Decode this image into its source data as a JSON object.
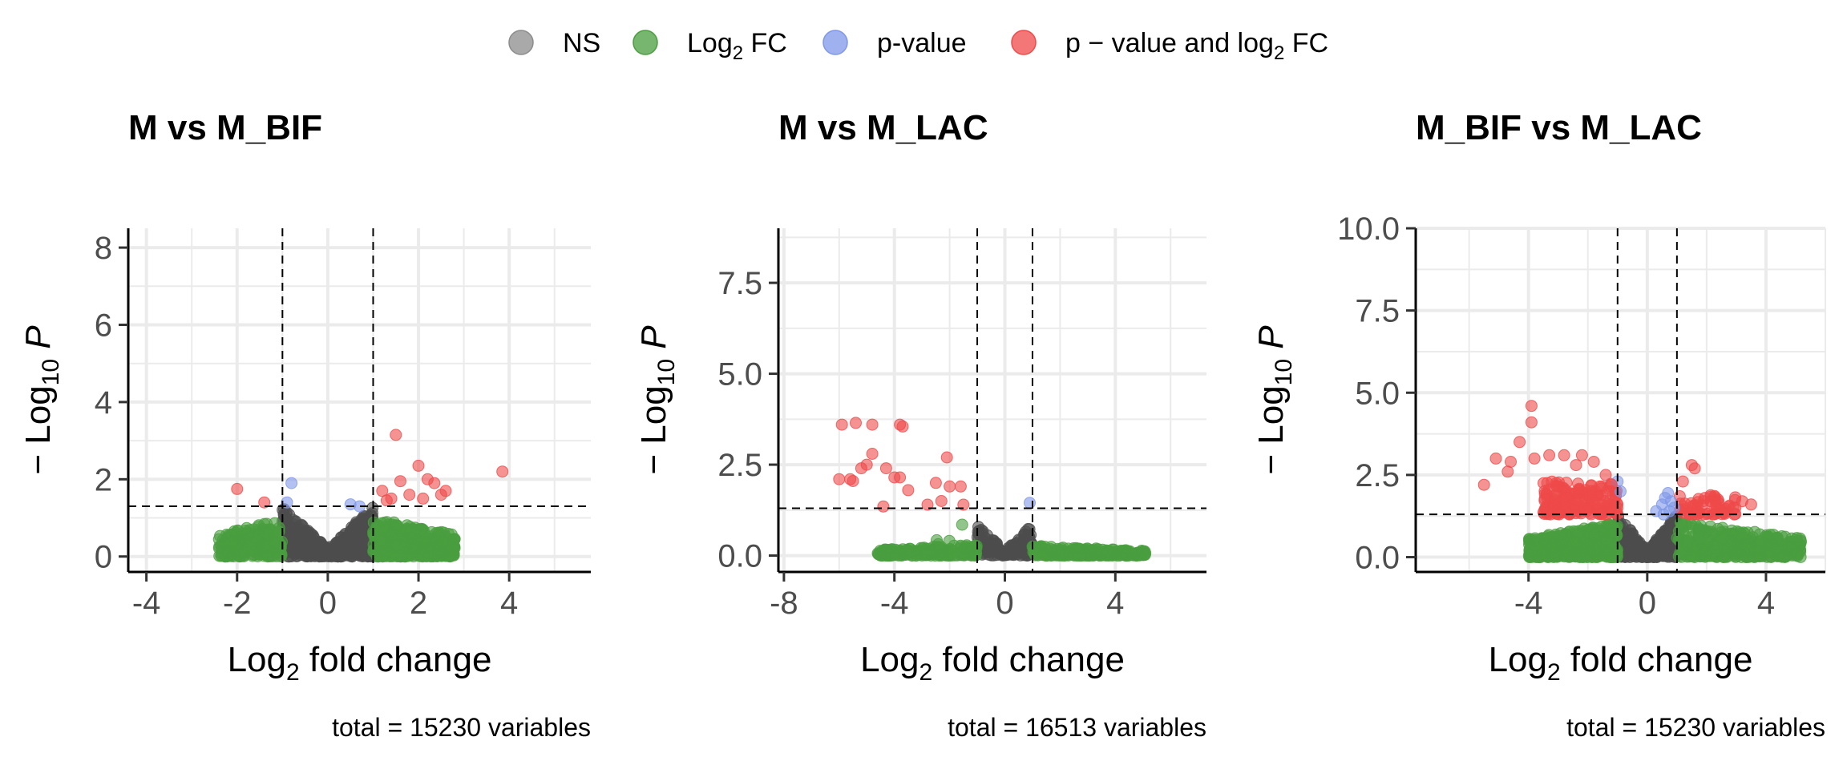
{
  "legend": {
    "items": [
      {
        "key": "ns",
        "label": "NS",
        "color": "#8c8c8c"
      },
      {
        "key": "fc",
        "label": "Log",
        "sub": "2",
        "after": " FC",
        "color": "#4a9e3f"
      },
      {
        "key": "p",
        "label": "p-value",
        "color": "#7f97e8"
      },
      {
        "key": "pfc",
        "label": "p − value and log",
        "sub": "2",
        "after": " FC",
        "color": "#ef4a4a"
      }
    ]
  },
  "axis_text": {
    "xlabel_pre": "Log",
    "xlabel_sub": "2",
    "xlabel_post": " fold change",
    "ylabel_pre": "− Log",
    "ylabel_sub": "10",
    "ylabel_post": "P"
  },
  "chart_data": [
    {
      "type": "scatter",
      "title": "M vs M_BIF",
      "caption": "total = 15230 variables",
      "xlim": [
        -4.4,
        5.8
      ],
      "ylim": [
        -0.4,
        8.5
      ],
      "xticks": [
        -4,
        -2,
        0,
        2,
        4
      ],
      "yticks": [
        0,
        2,
        4,
        6,
        8
      ],
      "ytick_labels": [
        "0",
        "2",
        "4",
        "6",
        "8"
      ],
      "fc_cutoff": [
        -1,
        1
      ],
      "p_cutoff": 1.3,
      "red": [
        [
          -2.0,
          1.75
        ],
        [
          -1.4,
          1.4
        ],
        [
          1.2,
          1.7
        ],
        [
          1.5,
          3.15
        ],
        [
          1.4,
          1.5
        ],
        [
          1.6,
          1.95
        ],
        [
          1.8,
          1.6
        ],
        [
          2.0,
          2.35
        ],
        [
          2.1,
          1.5
        ],
        [
          2.2,
          2.0
        ],
        [
          2.35,
          1.9
        ],
        [
          2.5,
          1.6
        ],
        [
          2.6,
          1.7
        ],
        [
          3.85,
          2.2
        ],
        [
          1.3,
          1.45
        ]
      ],
      "blue": [
        [
          -0.8,
          1.9
        ],
        [
          -0.9,
          1.4
        ],
        [
          0.5,
          1.35
        ],
        [
          0.7,
          1.3
        ]
      ],
      "green_groups": [
        {
          "x": [
            -2.4,
            -1.0
          ],
          "ymax": 1.25,
          "n": 240
        },
        {
          "x": [
            1.0,
            2.8
          ],
          "ymax": 1.25,
          "n": 420
        }
      ],
      "grey": {
        "xmax": 1.0,
        "ymax": 1.3,
        "n": 500
      }
    },
    {
      "type": "scatter",
      "title": "M vs M_LAC",
      "caption": "total = 16513 variables",
      "xlim": [
        -8.2,
        7.3
      ],
      "ylim": [
        -0.45,
        9.0
      ],
      "xticks": [
        -8,
        -4,
        0,
        4
      ],
      "yticks": [
        0,
        2.5,
        5,
        7.5
      ],
      "ytick_labels": [
        "0.0",
        "2.5",
        "5.0",
        "7.5"
      ],
      "fc_cutoff": [
        -1,
        1
      ],
      "p_cutoff": 1.3,
      "red": [
        [
          -5.9,
          3.6
        ],
        [
          -5.4,
          3.65
        ],
        [
          -4.8,
          3.6
        ],
        [
          -3.8,
          3.6
        ],
        [
          -3.7,
          3.55
        ],
        [
          -6.0,
          2.1
        ],
        [
          -5.6,
          2.1
        ],
        [
          -5.5,
          2.05
        ],
        [
          -5.2,
          2.4
        ],
        [
          -5.0,
          2.5
        ],
        [
          -4.8,
          2.8
        ],
        [
          -4.4,
          1.35
        ],
        [
          -4.3,
          2.4
        ],
        [
          -4.0,
          2.15
        ],
        [
          -3.8,
          2.15
        ],
        [
          -3.5,
          1.8
        ],
        [
          -2.8,
          1.4
        ],
        [
          -2.5,
          2.0
        ],
        [
          -2.1,
          2.7
        ],
        [
          -2.0,
          1.9
        ],
        [
          -1.6,
          1.9
        ],
        [
          -1.5,
          1.4
        ],
        [
          -2.3,
          1.5
        ]
      ],
      "blue": [
        [
          0.9,
          1.45
        ]
      ],
      "green_groups": [
        {
          "x": [
            -4.6,
            -1.0
          ],
          "ymax": 0.35,
          "n": 230
        },
        {
          "x": [
            1.0,
            5.1
          ],
          "ymax": 0.3,
          "n": 300
        },
        {
          "x": [
            -3.5,
            -1.5
          ],
          "ymax": 1.15,
          "n": 8
        }
      ],
      "grey": {
        "xmax": 1.0,
        "ymax": 0.85,
        "n": 150
      }
    },
    {
      "type": "scatter",
      "title": "M_BIF vs M_LAC",
      "caption": "total = 15230 variables",
      "xlim": [
        -7.8,
        6.0
      ],
      "ylim": [
        -0.45,
        10.0
      ],
      "xticks": [
        -4,
        0,
        4
      ],
      "yticks": [
        0,
        2.5,
        5,
        7.5,
        10
      ],
      "ytick_labels": [
        "0.0",
        "2.5",
        "5.0",
        "7.5",
        "10.0"
      ],
      "fc_cutoff": [
        -1,
        1
      ],
      "p_cutoff": 1.3,
      "red": [
        [
          -3.9,
          4.6
        ],
        [
          -3.9,
          4.1
        ],
        [
          -4.3,
          3.5
        ],
        [
          -4.6,
          2.9
        ],
        [
          -4.7,
          2.6
        ],
        [
          -5.1,
          3.0
        ],
        [
          -5.5,
          2.2
        ],
        [
          -3.8,
          3.0
        ],
        [
          -3.3,
          3.1
        ],
        [
          -2.8,
          3.1
        ],
        [
          -2.4,
          2.8
        ],
        [
          -2.2,
          3.1
        ],
        [
          -1.8,
          2.9
        ],
        [
          -1.4,
          2.5
        ],
        [
          -1.2,
          2.2
        ],
        [
          1.2,
          2.3
        ],
        [
          1.5,
          2.8
        ],
        [
          1.6,
          2.7
        ],
        [
          2.4,
          1.7
        ],
        [
          2.9,
          1.5
        ],
        [
          3.2,
          1.7
        ],
        [
          3.5,
          1.6
        ]
      ],
      "red_groups": [
        {
          "x": [
            -3.5,
            -1.0
          ],
          "y": [
            1.3,
            2.3
          ],
          "n": 180
        },
        {
          "x": [
            1.0,
            3.0
          ],
          "y": [
            1.3,
            1.9
          ],
          "n": 60
        }
      ],
      "blue": [
        [
          -1.0,
          2.3
        ],
        [
          -0.9,
          2.0
        ],
        [
          0.3,
          1.4
        ],
        [
          0.5,
          1.6
        ],
        [
          0.6,
          1.8
        ],
        [
          0.7,
          1.95
        ],
        [
          0.8,
          1.7
        ],
        [
          0.9,
          1.5
        ],
        [
          0.55,
          1.3
        ],
        [
          0.75,
          1.4
        ]
      ],
      "green_groups": [
        {
          "x": [
            -4.0,
            -1.0
          ],
          "ymax": 1.25,
          "n": 500
        },
        {
          "x": [
            1.0,
            5.2
          ],
          "ymax": 1.25,
          "n": 380
        },
        {
          "x": [
            -3.9,
            -3.7
          ],
          "ymax": 0.9,
          "n": 2
        }
      ],
      "grey": {
        "xmax": 1.0,
        "ymax": 1.3,
        "n": 450
      }
    }
  ]
}
